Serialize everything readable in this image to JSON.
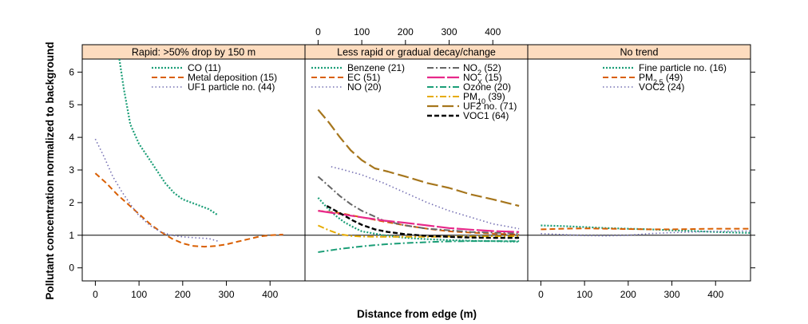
{
  "chart_data": {
    "type": "line",
    "xlabel": "Distance from edge (m)",
    "ylabel": "Pollutant concentration normalized to background",
    "xlim": [
      -30,
      480
    ],
    "ylim": [
      -0.4,
      6.4
    ],
    "x_ticks": [
      0,
      100,
      200,
      300,
      400
    ],
    "y_ticks": [
      0,
      1,
      2,
      3,
      4,
      5,
      6
    ],
    "reference_line_y": 1,
    "grid": false,
    "panels": [
      {
        "strip": "Rapid: >50% drop by 150 m",
        "x_axis_position": "bottom",
        "series": [
          {
            "name": "CO (11)",
            "color": "#1b9e77",
            "dash": "dotted-dense",
            "x": [
              55,
              65,
              80,
              100,
              120,
              140,
              160,
              180,
              200,
              230,
              260,
              280
            ],
            "y": [
              6.4,
              5.5,
              4.4,
              3.8,
              3.4,
              3.0,
              2.6,
              2.3,
              2.1,
              1.95,
              1.8,
              1.62
            ]
          },
          {
            "name": "Metal deposition (15)",
            "color": "#d95f02",
            "dash": "dashed",
            "x": [
              0,
              25,
              50,
              75,
              100,
              125,
              150,
              175,
              200,
              225,
              250,
              275,
              300,
              325,
              350,
              375,
              400,
              430
            ],
            "y": [
              2.9,
              2.6,
              2.25,
              1.95,
              1.65,
              1.35,
              1.1,
              0.9,
              0.75,
              0.67,
              0.65,
              0.67,
              0.72,
              0.8,
              0.88,
              0.96,
              1.0,
              1.02
            ]
          },
          {
            "name": "UF1 particle no. (44)",
            "color": "#7570b3",
            "dash": "dotted",
            "x": [
              0,
              20,
              40,
              60,
              80,
              100,
              125,
              150,
              175,
              200,
              230,
              260,
              285
            ],
            "y": [
              3.95,
              3.4,
              2.8,
              2.35,
              1.95,
              1.6,
              1.3,
              1.1,
              1.0,
              0.95,
              0.92,
              0.9,
              0.8
            ]
          }
        ]
      },
      {
        "strip": "Less rapid or gradual decay/change",
        "x_axis_position": "top",
        "series": [
          {
            "name": "Benzene (21)",
            "color": "#1b9e77",
            "dash": "dotted-dense",
            "x": [
              0,
              20,
              40,
              60,
              80,
              100,
              150,
              200,
              250,
              300,
              350,
              400,
              460
            ],
            "y": [
              2.15,
              1.85,
              1.6,
              1.4,
              1.25,
              1.12,
              1.0,
              0.92,
              0.88,
              0.85,
              0.83,
              0.82,
              0.8
            ]
          },
          {
            "name": "EC (51)",
            "color": "#d95f02",
            "dash": "dashed",
            "x": [
              0,
              50,
              100,
              150,
              200,
              250,
              300,
              350,
              400,
              460
            ],
            "y": [
              1.75,
              1.68,
              1.55,
              1.42,
              1.3,
              1.2,
              1.12,
              1.08,
              1.05,
              1.02
            ]
          },
          {
            "name": "NO (20)",
            "color": "#7570b3",
            "dash": "dotted",
            "x": [
              30,
              60,
              100,
              150,
              200,
              250,
              300,
              350,
              400,
              440,
              460
            ],
            "y": [
              3.1,
              3.0,
              2.85,
              2.6,
              2.3,
              2.0,
              1.75,
              1.55,
              1.35,
              1.25,
              1.2
            ]
          },
          {
            "name": "NO2 (52)",
            "color": "#666666",
            "dash": "dash-dot",
            "x": [
              0,
              25,
              50,
              75,
              100,
              125,
              150,
              200,
              250,
              300,
              350,
              400,
              460
            ],
            "y": [
              2.8,
              2.5,
              2.2,
              1.95,
              1.75,
              1.6,
              1.45,
              1.3,
              1.2,
              1.15,
              1.1,
              1.08,
              1.05
            ]
          },
          {
            "name": "NOX (15)",
            "color": "#e7298a",
            "dash": "solid-long-dash",
            "x": [
              0,
              50,
              100,
              150,
              200,
              250,
              300,
              350,
              400,
              460
            ],
            "y": [
              1.75,
              1.65,
              1.55,
              1.45,
              1.38,
              1.3,
              1.22,
              1.17,
              1.13,
              1.1
            ]
          },
          {
            "name": "Ozone (20)",
            "color": "#1b9e77",
            "dash": "dash-dot",
            "x": [
              0,
              50,
              100,
              150,
              200,
              250,
              300,
              350,
              400,
              460
            ],
            "y": [
              0.48,
              0.58,
              0.66,
              0.72,
              0.76,
              0.79,
              0.81,
              0.82,
              0.82,
              0.82
            ]
          },
          {
            "name": "PM10 (39)",
            "color": "#e6ab02",
            "dash": "dash-dot",
            "x": [
              0,
              25,
              50,
              75,
              100,
              150,
              200,
              250,
              300,
              350,
              400,
              460
            ],
            "y": [
              1.3,
              1.15,
              1.03,
              0.98,
              0.96,
              0.95,
              0.95,
              0.95,
              0.96,
              0.96,
              0.97,
              0.97
            ]
          },
          {
            "name": "UF2 no. (71)",
            "color": "#a6761d",
            "dash": "long-dash",
            "x": [
              0,
              25,
              50,
              75,
              100,
              130,
              160,
              200,
              250,
              300,
              350,
              400,
              460
            ],
            "y": [
              4.85,
              4.45,
              4.0,
              3.6,
              3.3,
              3.05,
              2.95,
              2.8,
              2.6,
              2.45,
              2.25,
              2.1,
              1.9
            ]
          },
          {
            "name": "VOC1 (64)",
            "color": "#000000",
            "dash": "dashed-bold",
            "x": [
              20,
              40,
              60,
              80,
              100,
              130,
              160,
              200,
              250,
              300,
              350,
              400,
              460
            ],
            "y": [
              1.9,
              1.75,
              1.6,
              1.45,
              1.32,
              1.18,
              1.1,
              1.03,
              0.98,
              0.95,
              0.93,
              0.92,
              0.92
            ]
          }
        ]
      },
      {
        "strip": "No trend",
        "x_axis_position": "bottom",
        "series": [
          {
            "name": "Fine particle no. (16)",
            "color": "#1b9e77",
            "dash": "dotted-dense",
            "x": [
              0,
              50,
              100,
              150,
              200,
              250,
              300,
              350,
              400,
              450,
              480
            ],
            "y": [
              1.3,
              1.28,
              1.25,
              1.22,
              1.2,
              1.18,
              1.15,
              1.13,
              1.1,
              1.08,
              1.07
            ]
          },
          {
            "name": "PM2.5 (49)",
            "color": "#d95f02",
            "dash": "dashed",
            "x": [
              0,
              50,
              100,
              150,
              200,
              250,
              300,
              350,
              400,
              450,
              480
            ],
            "y": [
              1.18,
              1.2,
              1.21,
              1.2,
              1.19,
              1.18,
              1.18,
              1.19,
              1.2,
              1.2,
              1.2
            ]
          },
          {
            "name": "VOC2 (24)",
            "color": "#7570b3",
            "dash": "dotted",
            "x": [
              0,
              50,
              100,
              150,
              200,
              250,
              300,
              350,
              400,
              450,
              480
            ],
            "y": [
              1.05,
              1.02,
              0.99,
              0.98,
              1.0,
              1.05,
              1.08,
              1.1,
              1.12,
              1.13,
              1.13
            ]
          }
        ]
      }
    ]
  }
}
